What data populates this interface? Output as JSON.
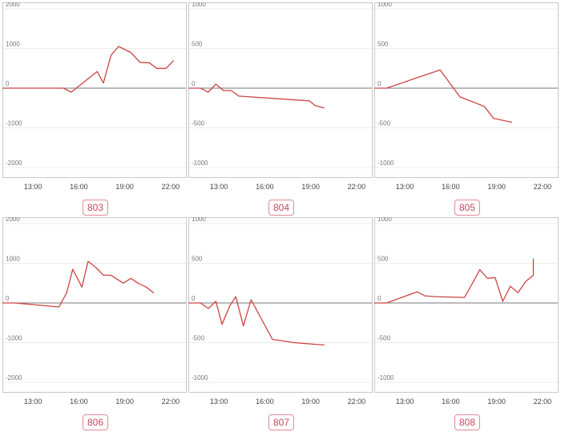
{
  "chart_data": [
    {
      "type": "line",
      "label": "803",
      "ylim": [
        -2000,
        2000
      ],
      "yticks": [
        2000,
        1000,
        0,
        -1000,
        -2000
      ],
      "xticks": [
        "13:00",
        "16:00",
        "19:00",
        "22:00"
      ],
      "xlim": [
        11,
        23
      ],
      "series": [
        {
          "x": [
            11,
            15,
            15.5,
            17.2,
            17.6,
            18.1,
            18.6,
            19.4,
            20.0,
            20.6,
            21.1,
            21.7,
            22.2
          ],
          "values": [
            0,
            0,
            -100,
            420,
            130,
            830,
            1050,
            900,
            650,
            640,
            500,
            500,
            700
          ]
        }
      ]
    },
    {
      "type": "line",
      "label": "804",
      "ylim": [
        -1000,
        1000
      ],
      "yticks": [
        1000,
        500,
        0,
        -500,
        -1000
      ],
      "xticks": [
        "13:00",
        "16:00",
        "19:00",
        "22:00"
      ],
      "xlim": [
        11,
        23
      ],
      "series": [
        {
          "x": [
            11,
            11.8,
            12.3,
            12.8,
            13.3,
            13.8,
            14.3,
            18.9,
            19.3,
            19.9
          ],
          "values": [
            0,
            0,
            -50,
            50,
            -30,
            -30,
            -100,
            -160,
            -220,
            -250
          ]
        }
      ]
    },
    {
      "type": "line",
      "label": "805",
      "ylim": [
        -1000,
        1000
      ],
      "yticks": [
        1000,
        500,
        0,
        -500,
        -1000
      ],
      "xticks": [
        "13:00",
        "16:00",
        "19:00",
        "22:00"
      ],
      "xlim": [
        11,
        23
      ],
      "series": [
        {
          "x": [
            11,
            11.8,
            15.3,
            16.6,
            18.2,
            18.8,
            20.0
          ],
          "values": [
            0,
            0,
            230,
            -110,
            -230,
            -380,
            -430
          ]
        }
      ]
    },
    {
      "type": "line",
      "label": "806",
      "ylim": [
        -2000,
        2000
      ],
      "yticks": [
        2000,
        1000,
        0,
        -1000,
        -2000
      ],
      "xticks": [
        "13:00",
        "16:00",
        "19:00",
        "22:00"
      ],
      "xlim": [
        11,
        23
      ],
      "series": [
        {
          "x": [
            11,
            11.8,
            14.7,
            15.2,
            15.6,
            16.2,
            16.6,
            17.1,
            17.6,
            18.1,
            18.9,
            19.4,
            19.9,
            20.4,
            20.9
          ],
          "values": [
            0,
            0,
            -100,
            250,
            850,
            400,
            1050,
            900,
            700,
            700,
            500,
            620,
            490,
            400,
            250
          ]
        }
      ]
    },
    {
      "type": "line",
      "label": "807",
      "ylim": [
        -1000,
        1000
      ],
      "yticks": [
        1000,
        500,
        0,
        -500,
        -1000
      ],
      "xticks": [
        "13:00",
        "16:00",
        "19:00",
        "22:00"
      ],
      "xlim": [
        11,
        23
      ],
      "series": [
        {
          "x": [
            11,
            11.8,
            12.3,
            12.8,
            13.2,
            13.7,
            14.1,
            14.6,
            15.1,
            16.5,
            16.9,
            17.9,
            19.9
          ],
          "values": [
            0,
            0,
            -70,
            20,
            -270,
            -40,
            80,
            -290,
            40,
            -460,
            -470,
            -500,
            -530
          ]
        }
      ]
    },
    {
      "type": "line",
      "label": "808",
      "ylim": [
        -1000,
        1000
      ],
      "yticks": [
        1000,
        500,
        0,
        -500,
        -1000
      ],
      "xticks": [
        "13:00",
        "16:00",
        "19:00",
        "22:00"
      ],
      "xlim": [
        11,
        23
      ],
      "series": [
        {
          "x": [
            11,
            11.8,
            13.8,
            14.3,
            15.0,
            16.9,
            17.4,
            17.9,
            18.4,
            18.9,
            19.4,
            19.9,
            20.4,
            20.9,
            21.4
          ],
          "values": [
            0,
            0,
            140,
            90,
            80,
            70,
            240,
            420,
            310,
            320,
            20,
            210,
            130,
            270,
            350
          ]
        }
      ]
    }
  ],
  "extra_points": {
    "808": [
      [
        21.4,
        560
      ],
      [
        20.9,
        350
      ]
    ]
  }
}
